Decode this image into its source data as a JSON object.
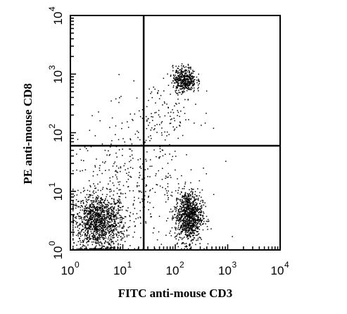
{
  "chart_data": {
    "type": "scatter",
    "xlabel": "FITC anti-mouse CD3",
    "ylabel": "PE anti-mouse CD8",
    "xscale": "log",
    "yscale": "log",
    "xlim": [
      1,
      10000
    ],
    "ylim": [
      1,
      10000
    ],
    "x_ticks": [
      {
        "base": "10",
        "exp": "0",
        "value": 1
      },
      {
        "base": "10",
        "exp": "1",
        "value": 10
      },
      {
        "base": "10",
        "exp": "2",
        "value": 100
      },
      {
        "base": "10",
        "exp": "3",
        "value": 1000
      },
      {
        "base": "10",
        "exp": "4",
        "value": 10000
      }
    ],
    "y_ticks": [
      {
        "base": "10",
        "exp": "0",
        "value": 1
      },
      {
        "base": "10",
        "exp": "1",
        "value": 10
      },
      {
        "base": "10",
        "exp": "2",
        "value": 100
      },
      {
        "base": "10",
        "exp": "3",
        "value": 1000
      },
      {
        "base": "10",
        "exp": "4",
        "value": 10000
      }
    ],
    "quadrant_gate": {
      "x": 25,
      "y": 60
    },
    "populations": [
      {
        "center": [
          3.5,
          3.0
        ],
        "n": 1300,
        "spread_decades": [
          0.25,
          0.24
        ]
      },
      {
        "center": [
          180,
          3.8
        ],
        "n": 1000,
        "spread_decades": [
          0.13,
          0.22
        ]
      },
      {
        "center": [
          150,
          800
        ],
        "n": 420,
        "spread_decades": [
          0.11,
          0.11
        ]
      },
      {
        "center": [
          15,
          15
        ],
        "n": 350,
        "spread_decades": [
          0.6,
          0.55
        ]
      },
      {
        "center": [
          60,
          200
        ],
        "n": 120,
        "spread_decades": [
          0.35,
          0.3
        ]
      }
    ],
    "grid": false,
    "legend": "none",
    "point_color": "#000000"
  }
}
